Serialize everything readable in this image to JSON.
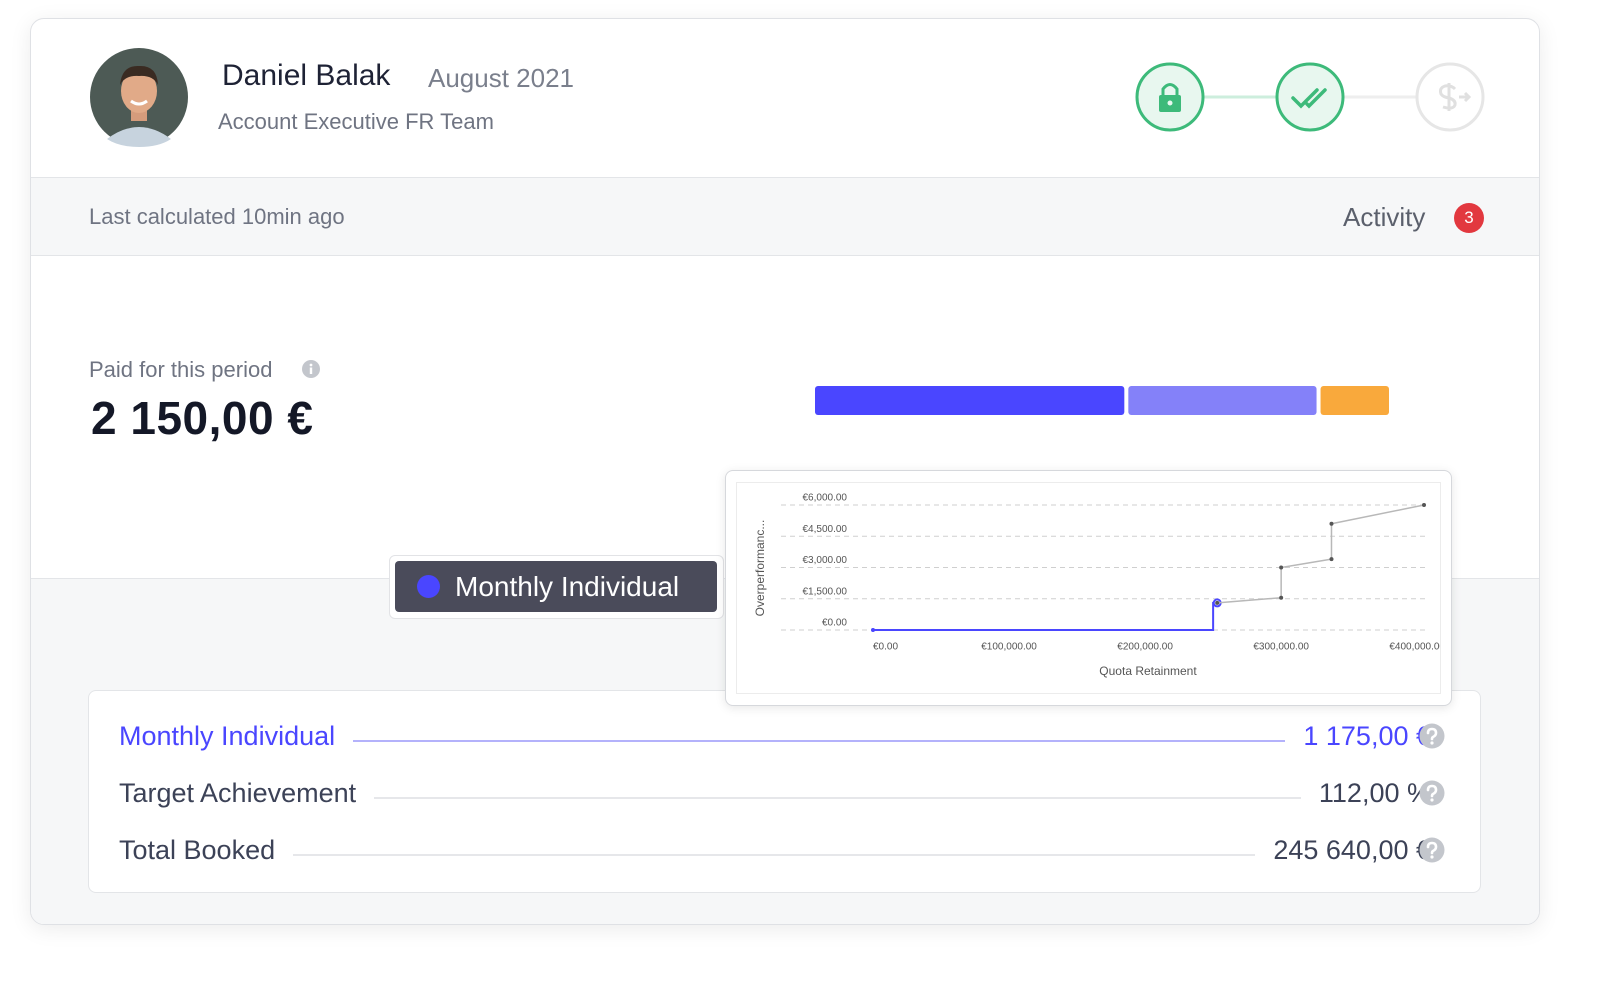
{
  "header": {
    "name": "Daniel Balak",
    "period": "August 2021",
    "role": "Account Executive FR Team"
  },
  "status_bar": {
    "last_calculated": "Last calculated 10min ago",
    "activity": "Activity",
    "activity_count": 3
  },
  "summary": {
    "label": "Paid for this period",
    "amount": "2 150,00 €"
  },
  "breakdown": {
    "values": [
      1175,
      715,
      260
    ],
    "colors": [
      "#4a46ff",
      "#8481f9",
      "#f9a93c"
    ]
  },
  "tooltip": {
    "label": "Monthly Individual",
    "color": "#4a46ff"
  },
  "chart_data": {
    "type": "line",
    "x_label": "Quota Retainment",
    "y_label": "Overperformanc...",
    "xlim": [
      0,
      405000
    ],
    "ylim": [
      0,
      6000
    ],
    "xticks": [
      {
        "value": 0,
        "label": "€0.00"
      },
      {
        "value": 100000,
        "label": "€100,000.00"
      },
      {
        "value": 200000,
        "label": "€200,000.00"
      },
      {
        "value": 300000,
        "label": "€300,000.00"
      },
      {
        "value": 400000,
        "label": "€400,000.00"
      }
    ],
    "yticks": [
      {
        "value": 0,
        "label": "€0.00"
      },
      {
        "value": 1500,
        "label": "€1,500.00"
      },
      {
        "value": 3000,
        "label": "€3,000.00"
      },
      {
        "value": 4500,
        "label": "€4,500.00"
      },
      {
        "value": 6000,
        "label": "€6,000.00"
      }
    ],
    "grid": true,
    "series": [
      {
        "color": "#4a46ff",
        "x": [
          0,
          250000,
          250000,
          253000
        ],
        "values": [
          0,
          0,
          1300,
          1300
        ]
      },
      {
        "color": "#b8b8b8",
        "x": [
          253000,
          300000,
          300000,
          337000,
          337000,
          405000
        ],
        "values": [
          1300,
          1550,
          3000,
          3400,
          5100,
          6000
        ]
      }
    ]
  },
  "details": {
    "rows": [
      {
        "label": "Monthly Individual",
        "value": "1 175,00 €"
      },
      {
        "label": "Target Achievement",
        "value": "112,00 %"
      },
      {
        "label": "Total Booked",
        "value": "245 640,00 €"
      }
    ]
  }
}
